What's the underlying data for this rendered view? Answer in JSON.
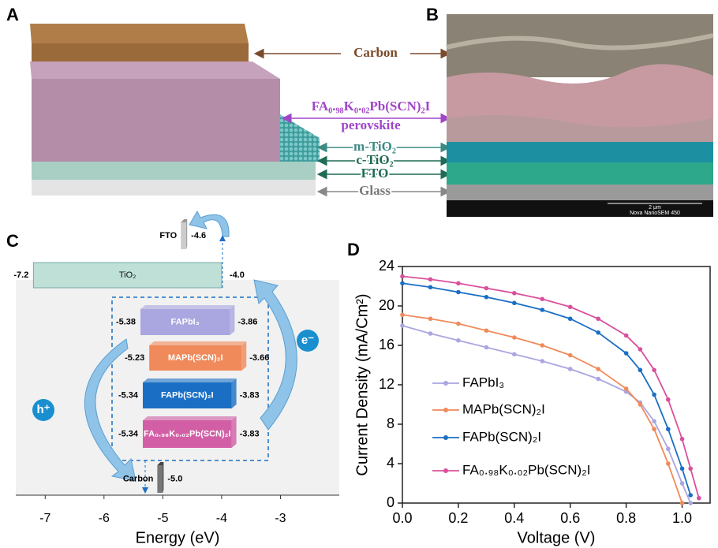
{
  "panel_labels": [
    "A",
    "B",
    "C",
    "D"
  ],
  "panel_a": {
    "layers": [
      "Carbon",
      "FA₀.₉₈K₀.₀₂Pb(SCN)₂I",
      "perovskite",
      "m-TiO₂",
      "c-TiO₂",
      "FTO",
      "Glass"
    ]
  },
  "panel_b": {
    "scale_bar": "2 μm",
    "instrument": "Nova NanoSEM 450"
  },
  "chart_data": [
    {
      "type": "energy-levels",
      "xlabel": "Energy (eV)",
      "xlim": [
        -7.5,
        -2
      ],
      "xticks": [
        -7,
        -6,
        -5,
        -4,
        -3
      ],
      "levels": [
        {
          "name": "TiO₂",
          "values": [
            -7.2,
            -4.0
          ],
          "value_labels": [
            "-7.2",
            "-4.0"
          ],
          "color": "#bfe0d6"
        },
        {
          "name": "FAPbI₃",
          "values": [
            -5.38,
            -3.86
          ],
          "value_labels": [
            "-5.38",
            "-3.86"
          ],
          "color": "#a9a6e0"
        },
        {
          "name": "MAPb(SCN)₂I",
          "values": [
            -5.23,
            -3.66
          ],
          "value_labels": [
            "-5.23",
            "-3.66"
          ],
          "color": "#f08a5a"
        },
        {
          "name": "FAPb(SCN)₂I",
          "values": [
            -5.34,
            -3.83
          ],
          "value_labels": [
            "-5.34",
            "-3.83"
          ],
          "color": "#1a6fc4"
        },
        {
          "name": "FA₀.₉₈K₀.₀₂Pb(SCN)₂I",
          "values": [
            -5.34,
            -3.83
          ],
          "value_labels": [
            "-5.34",
            "-3.83"
          ],
          "color": "#d25fa5"
        }
      ],
      "electrodes": [
        {
          "name": "FTO",
          "value": -4.6,
          "value_label": "-4.6"
        },
        {
          "name": "Carbon",
          "value": -5.0,
          "value_label": "-5.0"
        }
      ],
      "carriers": [
        "h⁺",
        "e⁻"
      ]
    },
    {
      "type": "line",
      "xlabel": "Voltage (V)",
      "ylabel": "Current Density (mA/Cm²)",
      "xlim": [
        0,
        1.1
      ],
      "ylim": [
        0,
        24
      ],
      "xticks": [
        {
          "value": 0,
          "label": "0.0"
        },
        0.2,
        0.4,
        0.6,
        0.8,
        {
          "value": 1,
          "label": "1.0"
        }
      ],
      "yticks": [
        0,
        4,
        8,
        12,
        16,
        20,
        24
      ],
      "x": [
        0,
        0.1,
        0.2,
        0.3,
        0.4,
        0.5,
        0.6,
        0.7,
        0.8,
        0.85,
        0.9,
        0.95,
        1.0,
        1.03,
        1.06
      ],
      "series": [
        {
          "name": "FAPbI₃",
          "color": "#a9a6e0",
          "values": [
            18,
            17.2,
            16.5,
            15.8,
            15.1,
            14.4,
            13.6,
            12.6,
            11.3,
            10.2,
            8.3,
            5.5,
            2.0,
            0,
            null
          ]
        },
        {
          "name": "MAPb(SCN)₂I",
          "color": "#f08a5a",
          "values": [
            19.1,
            18.7,
            18.2,
            17.5,
            16.8,
            16,
            15,
            13.6,
            11.6,
            10,
            7.5,
            4,
            0,
            null,
            null
          ]
        },
        {
          "name": "FAPb(SCN)₂I",
          "color": "#1a6fc4",
          "values": [
            22.3,
            21.9,
            21.4,
            20.9,
            20.3,
            19.6,
            18.7,
            17.3,
            15.2,
            13.5,
            11,
            7.5,
            3.5,
            0.8,
            null
          ]
        },
        {
          "name": "FA₀.₉₈K₀.₀₂Pb(SCN)₂I",
          "color": "#d9509c",
          "values": [
            23,
            22.7,
            22.3,
            21.8,
            21.3,
            20.7,
            19.9,
            18.7,
            17,
            15.6,
            13.5,
            10.5,
            6.5,
            3.5,
            0.5
          ]
        }
      ]
    }
  ]
}
